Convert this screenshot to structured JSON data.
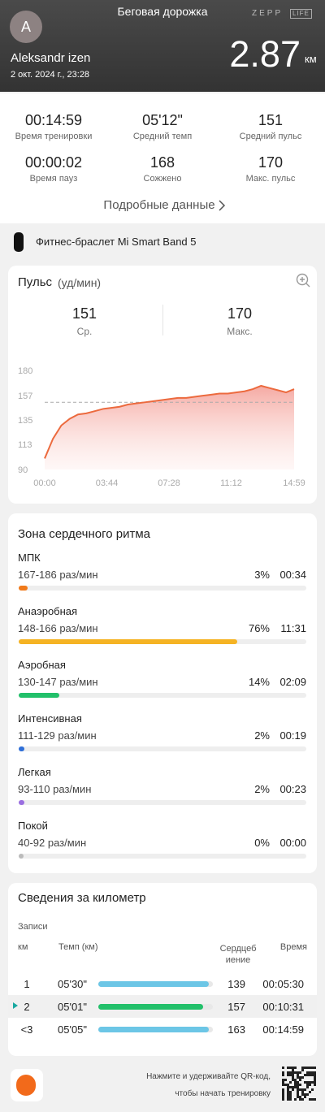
{
  "header": {
    "avatar": "A",
    "title": "Беговая дорожка",
    "brand": "ZEPP",
    "brand_sub": "LIFE",
    "user": "Aleksandr izen",
    "date": "2 окт. 2024 г., 23:28",
    "distance": 2.87,
    "distance_unit": "км"
  },
  "stats": {
    "items": [
      {
        "value": "00:14:59",
        "label": "Время тренировки"
      },
      {
        "value": "05'12\"",
        "label": "Средний темп"
      },
      {
        "value": 151,
        "label": "Средний пульс"
      },
      {
        "value": "00:00:02",
        "label": "Время пауз"
      },
      {
        "value": 168,
        "label": "Сожжено"
      },
      {
        "value": 170,
        "label": "Макс. пульс"
      }
    ],
    "details_link": "Подробные данные"
  },
  "device": "Фитнес-браслет Mi Smart Band 5",
  "pulse": {
    "title": "Пульс",
    "unit": "(уд/мин)",
    "average": 151,
    "average_label": "Ср.",
    "max": 170,
    "max_label": "Макс.",
    "chart": {
      "type": "area",
      "color": "#ec6a3e",
      "x": [
        0,
        30,
        60,
        90,
        120,
        150,
        180,
        210,
        240,
        270,
        300,
        330,
        360,
        390,
        420,
        450,
        480,
        510,
        540,
        570,
        600,
        630,
        660,
        690,
        720,
        750,
        780,
        810,
        840,
        870,
        899
      ],
      "values": [
        100,
        118,
        130,
        136,
        140,
        141,
        143,
        145,
        146,
        147,
        149,
        150,
        151,
        152,
        153,
        154,
        155,
        155,
        156,
        157,
        158,
        159,
        159,
        160,
        161,
        163,
        166,
        164,
        162,
        160,
        163
      ],
      "xlim": [
        0,
        899
      ],
      "ylim": [
        90,
        180
      ],
      "yticks": [
        90,
        113,
        135,
        157,
        180
      ],
      "xticks": [
        {
          "value": 0,
          "label": "00:00"
        },
        {
          "value": 224,
          "label": "03:44"
        },
        {
          "value": 448,
          "label": "07:28"
        },
        {
          "value": 672,
          "label": "11:12"
        },
        {
          "value": 899,
          "label": "14:59"
        }
      ]
    }
  },
  "zones": {
    "title": "Зона сердечного ритма",
    "xlim": [
      0,
      100
    ],
    "items": [
      {
        "name": "МПК",
        "range": "167-186 раз/мин",
        "percent": 3,
        "percent_label": "3%",
        "time": "00:34",
        "color": "#f07a1a"
      },
      {
        "name": "Анаэробная",
        "range": "148-166 раз/мин",
        "percent": 76,
        "percent_label": "76%",
        "time": "11:31",
        "color": "#f5b323"
      },
      {
        "name": "Аэробная",
        "range": "130-147 раз/мин",
        "percent": 14,
        "percent_label": "14%",
        "time": "02:09",
        "color": "#22c06a"
      },
      {
        "name": "Интенсивная",
        "range": "111-129 раз/мин",
        "percent": 2,
        "percent_label": "2%",
        "time": "00:19",
        "color": "#2f6fd8"
      },
      {
        "name": "Легкая",
        "range": "93-110 раз/мин",
        "percent": 2,
        "percent_label": "2%",
        "time": "00:23",
        "color": "#9a6ee0"
      },
      {
        "name": "Покой",
        "range": "40-92 раз/мин",
        "percent": 0,
        "percent_label": "0%",
        "time": "00:00",
        "color": "#bbbbbb"
      }
    ]
  },
  "km": {
    "title": "Сведения за километр",
    "records_label": "Зaписи",
    "columns": [
      "км",
      "Темп (км)",
      "Сердцебиение",
      "Время"
    ],
    "rows": [
      {
        "km": "1",
        "pace": "05'30\"",
        "heart_rate": 139,
        "time": "00:05:30"
      },
      {
        "km": "2",
        "pace": "05'01\"",
        "heart_rate": 157,
        "time": "00:10:31"
      },
      {
        "km": "<3",
        "pace": "05'05\"",
        "heart_rate": 163,
        "time": "00:14:59"
      }
    ]
  },
  "footer": {
    "hint_line1": "Нажмите и удерживайте QR-код,",
    "hint_line2": "чтобы начать тренировку"
  }
}
